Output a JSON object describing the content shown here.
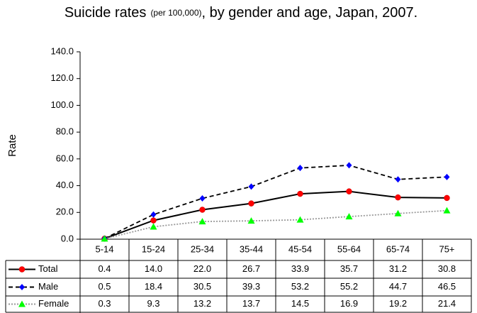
{
  "chart_data": {
    "type": "line",
    "title": "Suicide rates",
    "title_note": "(per 100,000)",
    "title_rest": ", by gender and age, Japan, 2007.",
    "y_label": "Rate",
    "categories": [
      "5-14",
      "15-24",
      "25-34",
      "35-44",
      "45-54",
      "55-64",
      "65-74",
      "75+"
    ],
    "ylim": [
      0,
      140
    ],
    "yticks": [
      {
        "value": 0,
        "label": "0.0"
      },
      {
        "value": 20,
        "label": "20.0"
      },
      {
        "value": 40,
        "label": "40.0"
      },
      {
        "value": 60,
        "label": "60.0"
      },
      {
        "value": 80,
        "label": "80.0"
      },
      {
        "value": 100,
        "label": "100.0"
      },
      {
        "value": 120,
        "label": "120.0"
      },
      {
        "value": 140,
        "label": "140.0"
      }
    ],
    "series": [
      {
        "name": "Total",
        "color": "#000000",
        "marker_color": "#ff0000",
        "marker": "circle",
        "dash": "solid",
        "values": [
          0.4,
          14,
          22,
          26.7,
          33.9,
          35.7,
          31.2,
          30.8
        ],
        "value_labels": [
          "0.4",
          "14.0",
          "22.0",
          "26.7",
          "33.9",
          "35.7",
          "31.2",
          "30.8"
        ]
      },
      {
        "name": "Male",
        "color": "#000000",
        "marker_color": "#0000ff",
        "marker": "diamond",
        "dash": "dashed",
        "values": [
          0.5,
          18.4,
          30.5,
          39.3,
          53.2,
          55.2,
          44.7,
          46.5
        ],
        "value_labels": [
          "0.5",
          "18.4",
          "30.5",
          "39.3",
          "53.2",
          "55.2",
          "44.7",
          "46.5"
        ]
      },
      {
        "name": "Female",
        "color": "#999999",
        "marker_color": "#00ff00",
        "marker": "triangle",
        "dash": "dotted",
        "values": [
          0.3,
          9.3,
          13.2,
          13.7,
          14.5,
          16.9,
          19.2,
          21.4
        ],
        "value_labels": [
          "0.3",
          "9.3",
          "13.2",
          "13.7",
          "14.5",
          "16.9",
          "19.2",
          "21.4"
        ]
      }
    ]
  }
}
